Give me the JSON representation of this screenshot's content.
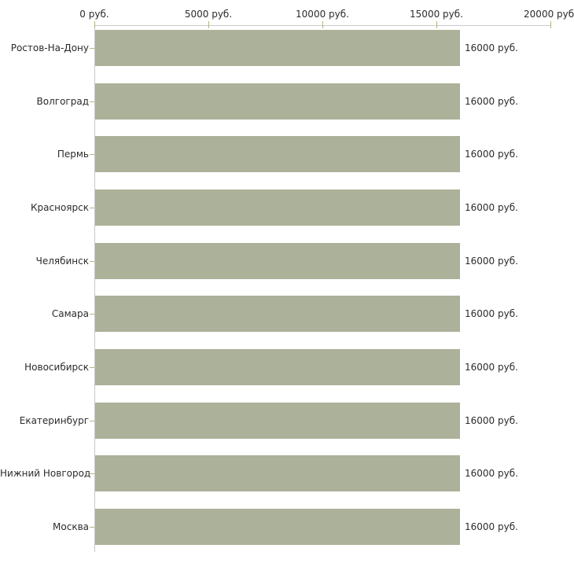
{
  "chart_data": {
    "type": "bar",
    "orientation": "horizontal",
    "title": "",
    "xlabel": "",
    "ylabel": "",
    "unit": "руб.",
    "x_axis_position": "top",
    "xlim": [
      0,
      20000
    ],
    "x_ticks": [
      0,
      5000,
      10000,
      15000,
      20000
    ],
    "x_tick_labels": [
      "0 руб.",
      "5000 руб.",
      "10000 руб.",
      "15000 руб.",
      "20000 руб."
    ],
    "categories": [
      "Ростов-На-Дону",
      "Волгоград",
      "Пермь",
      "Красноярск",
      "Челябинск",
      "Самара",
      "Новосибирск",
      "Екатеринбург",
      "Нижний Новгород",
      "Москва"
    ],
    "values": [
      16000,
      16000,
      16000,
      16000,
      16000,
      16000,
      16000,
      16000,
      16000,
      16000
    ],
    "bar_labels": [
      "16000 руб.",
      "16000 руб.",
      "16000 руб.",
      "16000 руб.",
      "16000 руб.",
      "16000 руб.",
      "16000 руб.",
      "16000 руб.",
      "16000 руб.",
      "16000 руб."
    ],
    "grid": false,
    "legend": false
  },
  "chart_style": {
    "background": "#ffffff",
    "bar_color": "#acb199",
    "axis_line_color": "#c9c9c9",
    "tick_color": "#b4b482",
    "text_color": "#2b2b2b"
  }
}
